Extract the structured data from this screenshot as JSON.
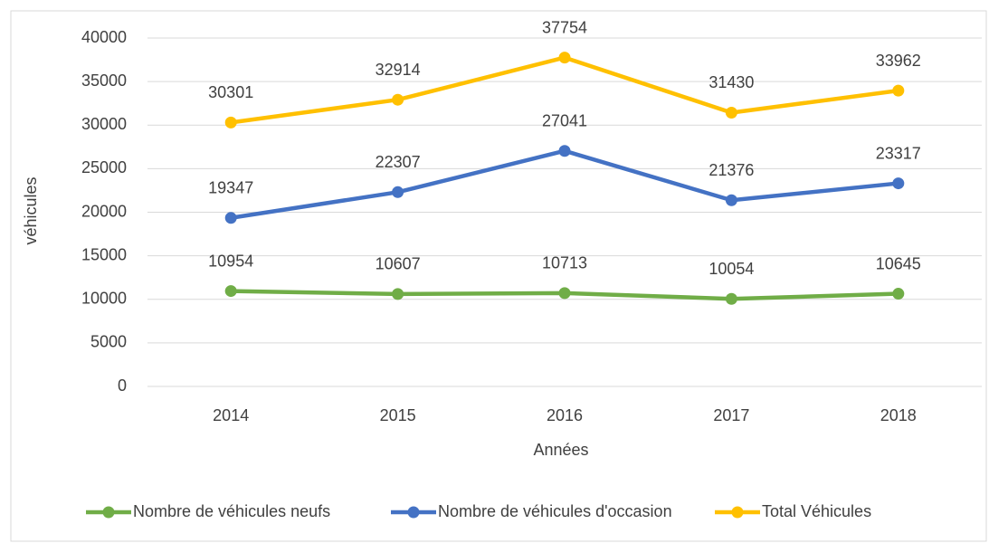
{
  "chart_data": {
    "type": "line",
    "x_label": "Années",
    "y_label": "véhicules",
    "categories": [
      "2014",
      "2015",
      "2016",
      "2017",
      "2018"
    ],
    "series": [
      {
        "name": "Nombre de véhicules neufs",
        "color": "#70ad47",
        "values": [
          10954,
          10607,
          10713,
          10054,
          10645
        ]
      },
      {
        "name": "Nombre de véhicules d'occasion",
        "color": "#4472c4",
        "values": [
          19347,
          22307,
          27041,
          21376,
          23317
        ]
      },
      {
        "name": "Total Véhicules",
        "color": "#ffc000",
        "values": [
          30301,
          32914,
          37754,
          31430,
          33962
        ]
      }
    ],
    "ylim": [
      0,
      40000
    ],
    "yticks": [
      0,
      5000,
      10000,
      15000,
      20000,
      25000,
      30000,
      35000,
      40000
    ],
    "grid": true,
    "legend": "bottom"
  }
}
